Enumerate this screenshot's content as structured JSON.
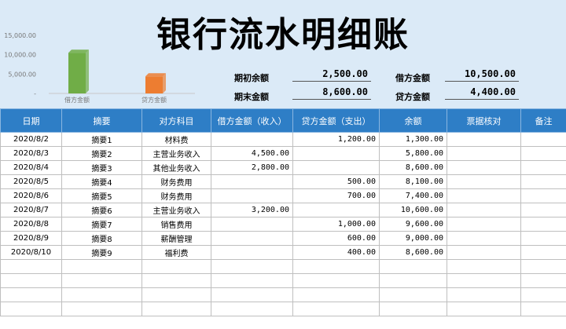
{
  "title": "银行流水明细账",
  "chart_data": {
    "type": "bar",
    "categories": [
      "借方金额",
      "贷方金额"
    ],
    "values": [
      10500,
      4400
    ],
    "ylim": [
      0,
      15000
    ],
    "yticks": [
      "15,000.00",
      "10,000.00",
      "5,000.00",
      "-"
    ],
    "colors": [
      "#70ad47",
      "#ed7d31"
    ],
    "grid": false
  },
  "summary": {
    "opening_label": "期初余额",
    "opening_value": "2,500.00",
    "closing_label": "期末金额",
    "closing_value": "8,600.00",
    "debit_label": "借方金额",
    "debit_value": "10,500.00",
    "credit_label": "贷方金额",
    "credit_value": "4,400.00"
  },
  "table": {
    "headers": [
      "日期",
      "摘要",
      "对方科目",
      "借方金额（收入）",
      "贷方金额（支出）",
      "余额",
      "票据核对",
      "备注"
    ],
    "rows": [
      [
        "2020/8/2",
        "摘要1",
        "材料费",
        "",
        "1,200.00",
        "1,300.00",
        "",
        ""
      ],
      [
        "2020/8/3",
        "摘要2",
        "主营业务收入",
        "4,500.00",
        "",
        "5,800.00",
        "",
        ""
      ],
      [
        "2020/8/4",
        "摘要3",
        "其他业务收入",
        "2,800.00",
        "",
        "8,600.00",
        "",
        ""
      ],
      [
        "2020/8/5",
        "摘要4",
        "财务费用",
        "",
        "500.00",
        "8,100.00",
        "",
        ""
      ],
      [
        "2020/8/6",
        "摘要5",
        "财务费用",
        "",
        "700.00",
        "7,400.00",
        "",
        ""
      ],
      [
        "2020/8/7",
        "摘要6",
        "主营业务收入",
        "3,200.00",
        "",
        "10,600.00",
        "",
        ""
      ],
      [
        "2020/8/8",
        "摘要7",
        "销售费用",
        "",
        "1,000.00",
        "9,600.00",
        "",
        ""
      ],
      [
        "2020/8/9",
        "摘要8",
        "薪酬管理",
        "",
        "600.00",
        "9,000.00",
        "",
        ""
      ],
      [
        "2020/8/10",
        "摘要9",
        "福利费",
        "",
        "400.00",
        "8,600.00",
        "",
        ""
      ],
      [
        "",
        "",
        "",
        "",
        "",
        "",
        "",
        ""
      ],
      [
        "",
        "",
        "",
        "",
        "",
        "",
        "",
        ""
      ],
      [
        "",
        "",
        "",
        "",
        "",
        "",
        "",
        ""
      ],
      [
        "",
        "",
        "",
        "",
        "",
        "",
        "",
        ""
      ]
    ]
  }
}
